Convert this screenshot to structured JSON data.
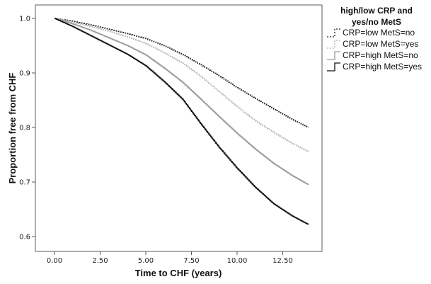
{
  "chart_data": {
    "type": "line",
    "step": true,
    "xlabel": "Time to CHF (years)",
    "ylabel": "Proportion free from CHF",
    "xlim": [
      0,
      14
    ],
    "ylim": [
      0.6,
      1.0
    ],
    "x_ticks": [
      "0.00",
      "2.50",
      "5.00",
      "7.50",
      "10.00",
      "12.50"
    ],
    "y_ticks": [
      "0.6",
      "0.7",
      "0.8",
      "0.9",
      "1.0"
    ],
    "grid": false,
    "legend": {
      "title_line1": "high/low CRP and",
      "title_line2": "yes/no MetS",
      "placement": "right"
    },
    "series": [
      {
        "name": "CRP=low MetS=no",
        "color": "#222222",
        "dash": "dotted",
        "x": [
          0,
          1,
          2,
          3,
          4,
          5,
          6,
          7,
          8,
          9,
          10,
          11,
          12,
          13,
          13.9
        ],
        "y": [
          1.0,
          0.995,
          0.988,
          0.98,
          0.972,
          0.963,
          0.95,
          0.934,
          0.915,
          0.895,
          0.873,
          0.853,
          0.834,
          0.815,
          0.8
        ]
      },
      {
        "name": "CRP=low MetS=yes",
        "color": "#b0b0b0",
        "dash": "dotted",
        "x": [
          0,
          1,
          2,
          3,
          4,
          5,
          6,
          7,
          8,
          9,
          10,
          11,
          12,
          13,
          13.9
        ],
        "y": [
          1.0,
          0.993,
          0.985,
          0.976,
          0.966,
          0.954,
          0.937,
          0.918,
          0.894,
          0.866,
          0.838,
          0.812,
          0.791,
          0.771,
          0.756
        ]
      },
      {
        "name": "CRP=high MetS=no",
        "color": "#9a9a9a",
        "dash": "solid",
        "x": [
          0,
          1,
          2,
          3,
          4,
          5,
          6,
          7,
          8,
          9,
          10,
          11,
          12,
          13,
          13.9
        ],
        "y": [
          1.0,
          0.99,
          0.978,
          0.964,
          0.95,
          0.933,
          0.909,
          0.883,
          0.852,
          0.82,
          0.789,
          0.76,
          0.734,
          0.712,
          0.695
        ]
      },
      {
        "name": "CRP=high MetS=yes",
        "color": "#111111",
        "dash": "solid",
        "x": [
          0,
          1,
          2,
          3,
          4,
          5,
          6,
          7,
          8,
          9,
          10,
          11,
          12,
          13,
          13.9
        ],
        "y": [
          1.0,
          0.985,
          0.968,
          0.951,
          0.934,
          0.913,
          0.884,
          0.852,
          0.807,
          0.764,
          0.725,
          0.69,
          0.66,
          0.638,
          0.622
        ]
      }
    ]
  }
}
